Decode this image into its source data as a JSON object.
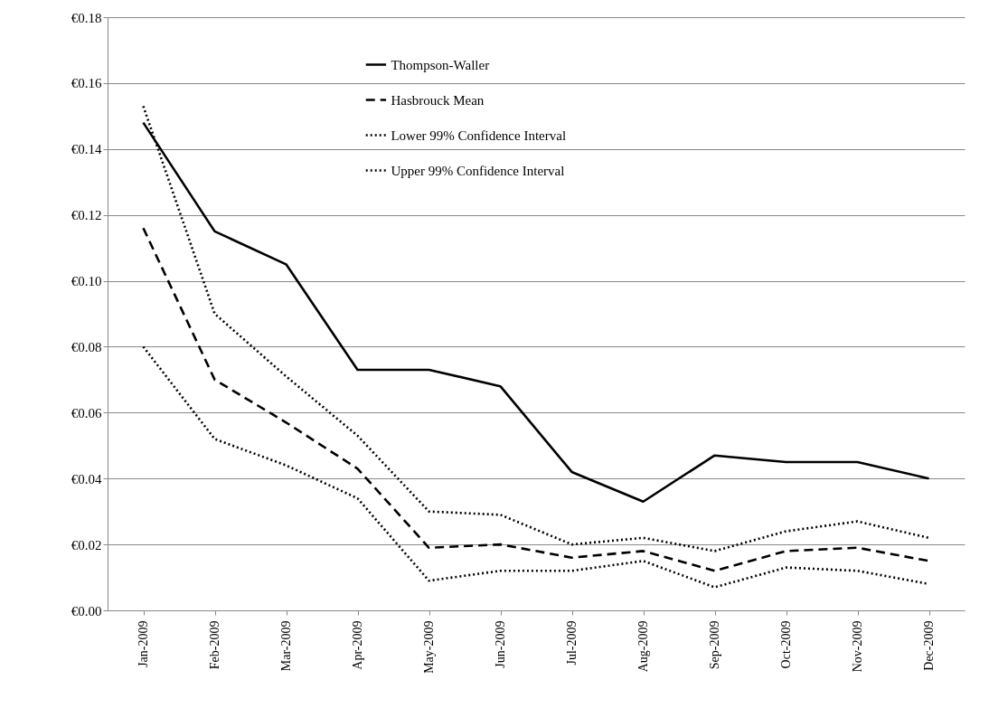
{
  "chart_data": {
    "type": "line",
    "categories": [
      "Jan-2009",
      "Feb-2009",
      "Mar-2009",
      "Apr-2009",
      "May-2009",
      "Jun-2009",
      "Jul-2009",
      "Aug-2009",
      "Sep-2009",
      "Oct-2009",
      "Nov-2009",
      "Dec-2009"
    ],
    "series": [
      {
        "name": "Thompson-Waller",
        "color": "#000000",
        "line_style": "solid",
        "values": [
          0.148,
          0.115,
          0.105,
          0.073,
          0.073,
          0.068,
          0.042,
          0.033,
          0.047,
          0.045,
          0.045,
          0.04
        ]
      },
      {
        "name": "Hasbrouck Mean",
        "color": "#000000",
        "line_style": "dashed",
        "values": [
          0.116,
          0.07,
          0.057,
          0.043,
          0.019,
          0.02,
          0.016,
          0.018,
          0.012,
          0.018,
          0.019,
          0.015
        ]
      },
      {
        "name": "Lower 99% Confidence Interval",
        "color": "#000000",
        "line_style": "dotted",
        "values": [
          0.08,
          0.052,
          0.044,
          0.034,
          0.009,
          0.012,
          0.012,
          0.015,
          0.007,
          0.013,
          0.012,
          0.008
        ]
      },
      {
        "name": "Upper 99% Confidence Interval",
        "color": "#000000",
        "line_style": "dotted",
        "values": [
          0.153,
          0.09,
          0.071,
          0.053,
          0.03,
          0.029,
          0.02,
          0.022,
          0.018,
          0.024,
          0.027,
          0.022
        ]
      }
    ],
    "ylim": [
      0,
      0.18
    ],
    "yticks": [
      {
        "value": 0,
        "label": "€0.00"
      },
      {
        "value": 0.02,
        "label": "€0.02"
      },
      {
        "value": 0.04,
        "label": "€0.04"
      },
      {
        "value": 0.06,
        "label": "€0.06"
      },
      {
        "value": 0.08,
        "label": "€0.08"
      },
      {
        "value": 0.1,
        "label": "€0.10"
      },
      {
        "value": 0.12,
        "label": "€0.12"
      },
      {
        "value": 0.14,
        "label": "€0.14"
      },
      {
        "value": 0.16,
        "label": "€0.16"
      },
      {
        "value": 0.18,
        "label": "€0.18"
      }
    ],
    "grid": "y",
    "legend": "top",
    "marker": "none"
  }
}
